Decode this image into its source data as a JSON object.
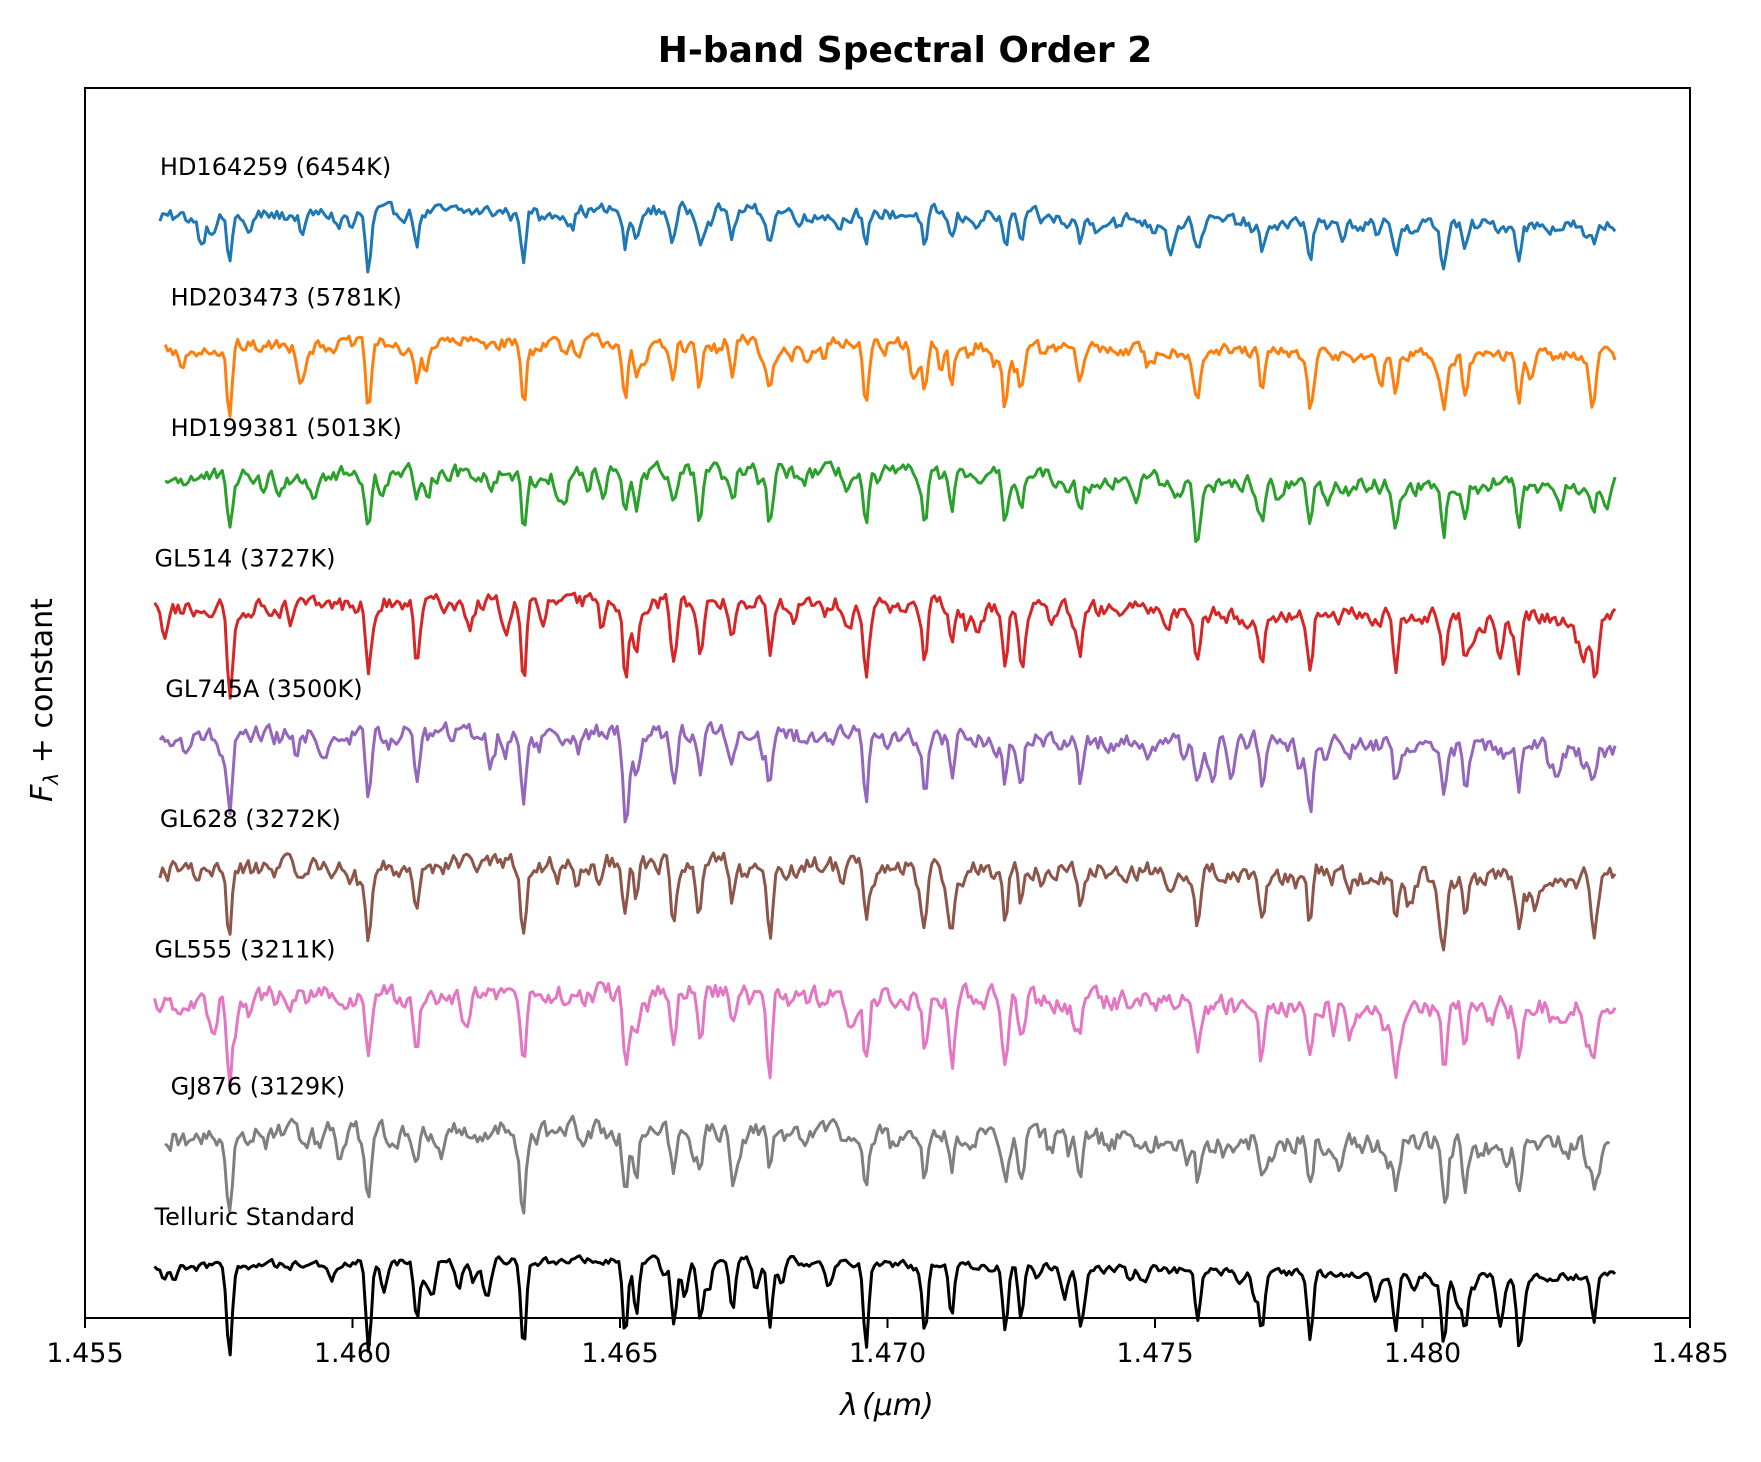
{
  "chart_data": {
    "type": "line",
    "title": "H-band Spectral Order 2",
    "xlabel": "λ (μm)",
    "xlabel_parts": {
      "symbol": "λ",
      "unit": "(μm)"
    },
    "ylabel": "Fλ + constant",
    "ylabel_parts": {
      "main": "F",
      "sub": "λ",
      "rest": " + constant"
    },
    "xlim": [
      1.455,
      1.485
    ],
    "ylim": [
      -0.4,
      9.5
    ],
    "y_ticks_shown": false,
    "x_ticks": [
      1.455,
      1.46,
      1.465,
      1.47,
      1.475,
      1.48,
      1.485
    ],
    "x_tick_labels": [
      "1.455",
      "1.460",
      "1.465",
      "1.470",
      "1.475",
      "1.480",
      "1.485"
    ],
    "grid": false,
    "legend": "none",
    "x_range_data": [
      1.4563,
      1.4836
    ],
    "common_lines": [
      {
        "x": 1.4577,
        "d": 0.72
      },
      {
        "x": 1.4603,
        "d": 0.7
      },
      {
        "x": 1.4612,
        "d": 0.45
      },
      {
        "x": 1.4632,
        "d": 0.7
      },
      {
        "x": 1.4651,
        "d": 0.6
      },
      {
        "x": 1.4653,
        "d": 0.45
      },
      {
        "x": 1.466,
        "d": 0.4
      },
      {
        "x": 1.4665,
        "d": 0.42
      },
      {
        "x": 1.4671,
        "d": 0.4
      },
      {
        "x": 1.4678,
        "d": 0.5
      },
      {
        "x": 1.4696,
        "d": 0.65
      },
      {
        "x": 1.4707,
        "d": 0.55
      },
      {
        "x": 1.4712,
        "d": 0.42
      },
      {
        "x": 1.4722,
        "d": 0.55
      },
      {
        "x": 1.4725,
        "d": 0.4
      },
      {
        "x": 1.4736,
        "d": 0.42
      },
      {
        "x": 1.4758,
        "d": 0.42
      },
      {
        "x": 1.477,
        "d": 0.45
      },
      {
        "x": 1.4779,
        "d": 0.52
      },
      {
        "x": 1.4795,
        "d": 0.4
      },
      {
        "x": 1.4804,
        "d": 0.55
      },
      {
        "x": 1.4808,
        "d": 0.42
      },
      {
        "x": 1.4818,
        "d": 0.45
      },
      {
        "x": 1.4832,
        "d": 0.3
      }
    ],
    "series": [
      {
        "name": "HD164259 (6454K)",
        "color": "#1f77b4",
        "offset": 8.45,
        "x_start": 1.4564,
        "x_end": 1.4836,
        "depth": 0.5,
        "noise": 0.05,
        "label_x": 1.4564
      },
      {
        "name": "HD203473 (5781K)",
        "color": "#ff7f0e",
        "offset": 7.4,
        "x_start": 1.4565,
        "x_end": 1.4836,
        "depth": 0.75,
        "noise": 0.05,
        "label_x": 1.4566
      },
      {
        "name": "HD199381 (5013K)",
        "color": "#2ca02c",
        "offset": 6.35,
        "x_start": 1.4565,
        "x_end": 1.4836,
        "depth": 0.65,
        "noise": 0.06,
        "label_x": 1.4566
      },
      {
        "name": "GL514 (3727K)",
        "color": "#d62728",
        "offset": 5.3,
        "x_start": 1.4563,
        "x_end": 1.4836,
        "depth": 0.85,
        "noise": 0.06,
        "label_x": 1.4563
      },
      {
        "name": "GL745A (3500K)",
        "color": "#9467bd",
        "offset": 4.25,
        "x_start": 1.4564,
        "x_end": 1.4836,
        "depth": 0.72,
        "noise": 0.07,
        "label_x": 1.4565
      },
      {
        "name": "GL628 (3272K)",
        "color": "#8c564b",
        "offset": 3.2,
        "x_start": 1.4564,
        "x_end": 1.4836,
        "depth": 0.78,
        "noise": 0.07,
        "label_x": 1.4564
      },
      {
        "name": "GL555 (3211K)",
        "color": "#e377c2",
        "offset": 2.15,
        "x_start": 1.4563,
        "x_end": 1.4836,
        "depth": 0.78,
        "noise": 0.08,
        "label_x": 1.4563
      },
      {
        "name": "GJ876 (3129K)",
        "color": "#7f7f7f",
        "offset": 1.05,
        "x_start": 1.4565,
        "x_end": 1.4835,
        "depth": 0.72,
        "noise": 0.08,
        "label_x": 1.4566
      },
      {
        "name": "Telluric Standard",
        "color": "#000000",
        "offset": 0.0,
        "x_start": 1.4563,
        "x_end": 1.4836,
        "depth": 1.0,
        "noise": 0.03,
        "label_x": 1.4563
      }
    ]
  }
}
